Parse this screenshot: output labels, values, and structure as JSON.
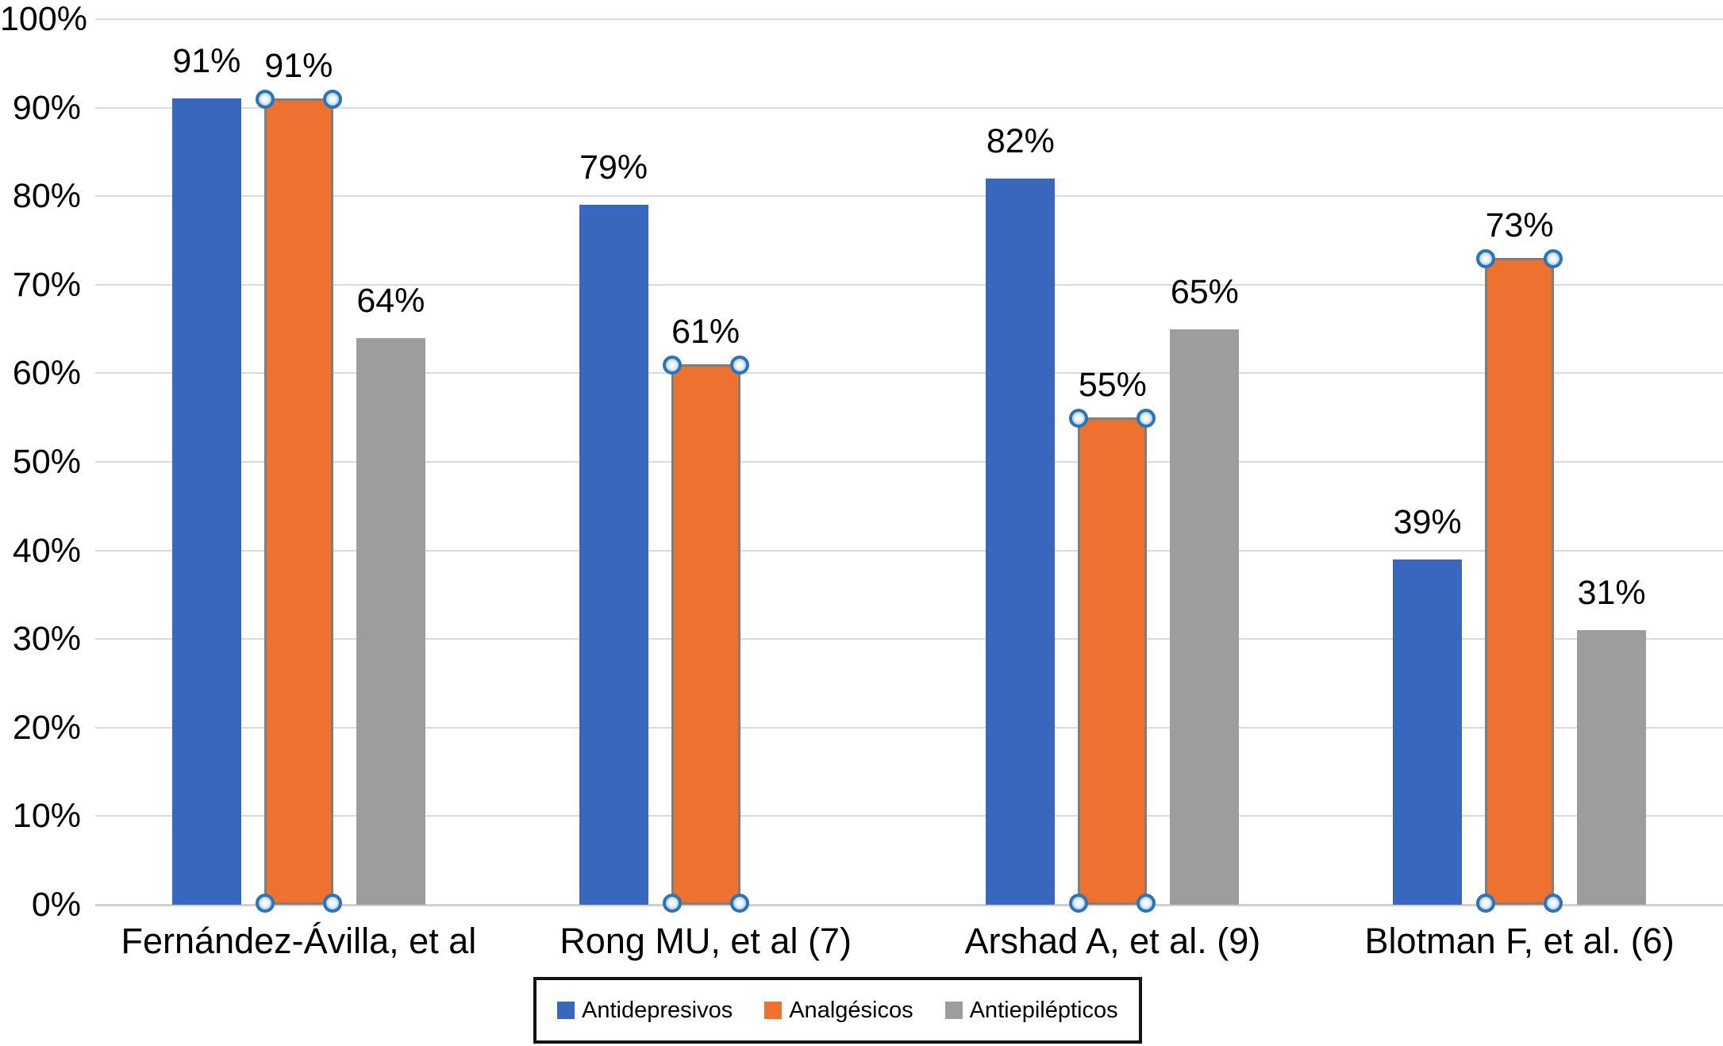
{
  "chart_data": {
    "type": "bar",
    "title": "",
    "categories": [
      "Fernández-Ávilla, et al",
      "Rong MU, et al (7)",
      "Arshad A, et al. (9)",
      "Blotman F, et al. (6)"
    ],
    "series": [
      {
        "key": "antidepresivos",
        "name": "Antidepresivos",
        "color": "#3A67BE",
        "values": [
          91,
          79,
          82,
          39
        ],
        "selected": false
      },
      {
        "key": "analgesicos",
        "name": "Analgésicos",
        "color": "#EE7130",
        "values": [
          91,
          61,
          55,
          73
        ],
        "selected": true
      },
      {
        "key": "antiepilepticos",
        "name": "Antiepilépticos",
        "color": "#9D9D9D",
        "values": [
          64,
          null,
          65,
          31
        ],
        "selected": false
      }
    ],
    "data_labels": [
      [
        "91%",
        "79%",
        "82%",
        "39%"
      ],
      [
        "91%",
        "61%",
        "55%",
        "73%"
      ],
      [
        "64%",
        null,
        "65%",
        "31%"
      ]
    ],
    "data_label_suffix": "%",
    "yticks": [
      "100%",
      "90%",
      "80%",
      "70%",
      "60%",
      "50%",
      "40%",
      "30%",
      "20%",
      "10%",
      "0%"
    ],
    "ylim": [
      0,
      100
    ],
    "ytick_step": 10,
    "xlabel": "",
    "ylabel": "",
    "grid": true,
    "legend_position": "bottom",
    "selection": {
      "selected_series": "Analgésicos",
      "handle_ring_color": "#2E74B5",
      "selected_outline_color": "#7E7E7E"
    }
  },
  "colors": {
    "background": "#FFFFFF",
    "gridline": "#DBDBDB",
    "axis_line": "#D0D0D0",
    "text": "#000000",
    "legend_border": "#141414"
  }
}
